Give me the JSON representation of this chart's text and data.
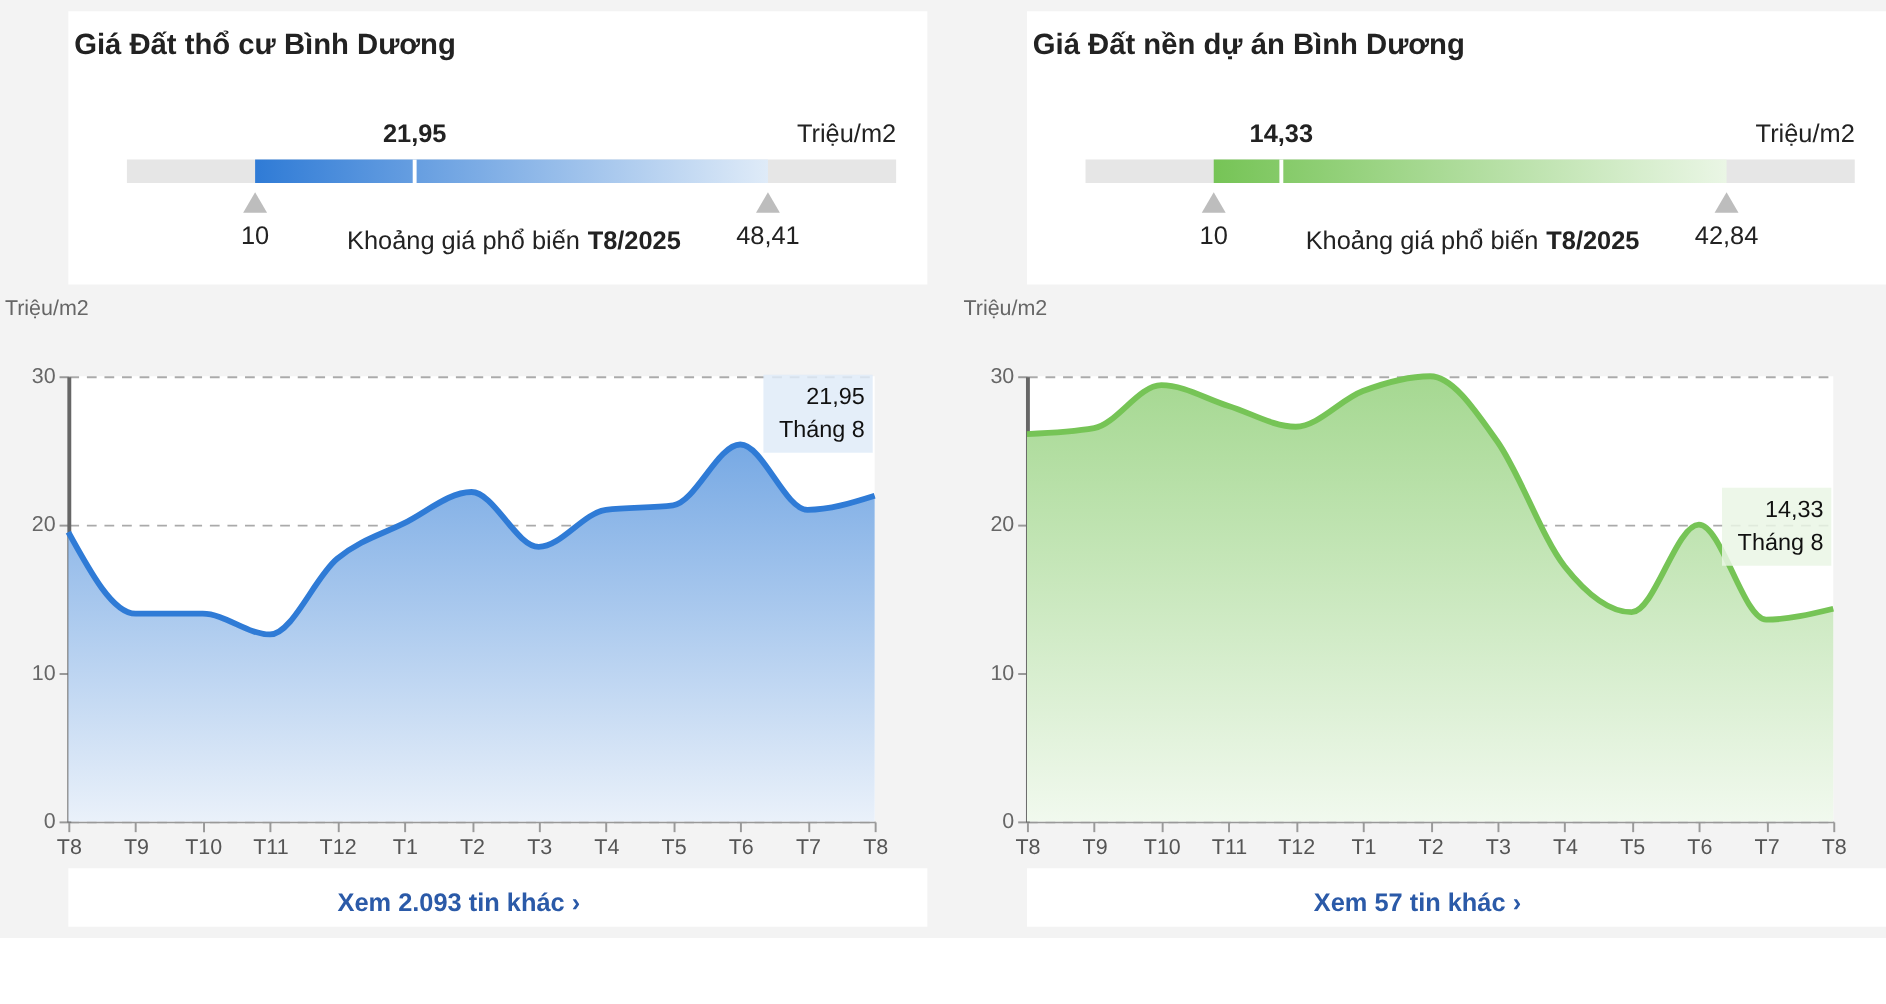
{
  "chart_data": [
    {
      "type": "area",
      "title": "Giá Đất thổ cư Bình Dương",
      "ylabel": "Triệu/m2",
      "categories": [
        "T8",
        "T9",
        "T10",
        "T11",
        "T12",
        "T1",
        "T2",
        "T3",
        "T4",
        "T5",
        "T6",
        "T7",
        "T8"
      ],
      "series": [
        {
          "color": "#2f7bd6",
          "values": [
            19.5,
            14.0,
            14.0,
            12.6,
            17.7,
            20.1,
            22.2,
            18.5,
            21.0,
            21.3,
            25.4,
            21.0,
            21.95
          ]
        }
      ],
      "ylim": [
        0,
        30
      ],
      "yticks": [
        0,
        10,
        20,
        30
      ],
      "grid": "y",
      "annotations": [
        "21,95",
        "Triệu/m2",
        "10",
        "48,41",
        "Khoảng giá phổ biến",
        "T8/2025",
        "Xem 2.093 tin khác ›",
        "21,95",
        "Tháng 8"
      ]
    },
    {
      "type": "area",
      "title": "Giá Đất nền dự án Bình Dương",
      "ylabel": "Triệu/m2",
      "categories": [
        "T8",
        "T9",
        "T10",
        "T11",
        "T12",
        "T1",
        "T2",
        "T3",
        "T4",
        "T5",
        "T6",
        "T7",
        "T8"
      ],
      "series": [
        {
          "color": "#76c456",
          "values": [
            26.1,
            26.5,
            29.4,
            28.0,
            26.6,
            29.0,
            30.0,
            25.6,
            17.2,
            14.1,
            20.0,
            13.6,
            14.33
          ]
        }
      ],
      "ylim": [
        0,
        30
      ],
      "yticks": [
        0,
        10,
        20,
        30
      ],
      "grid": "y",
      "annotations": [
        "14,33",
        "Triệu/m2",
        "10",
        "42,84",
        "Khoảng giá phổ biến",
        "T8/2025",
        "Xem 57 tin khác ›",
        "14,33",
        "Tháng 8"
      ]
    }
  ]
}
